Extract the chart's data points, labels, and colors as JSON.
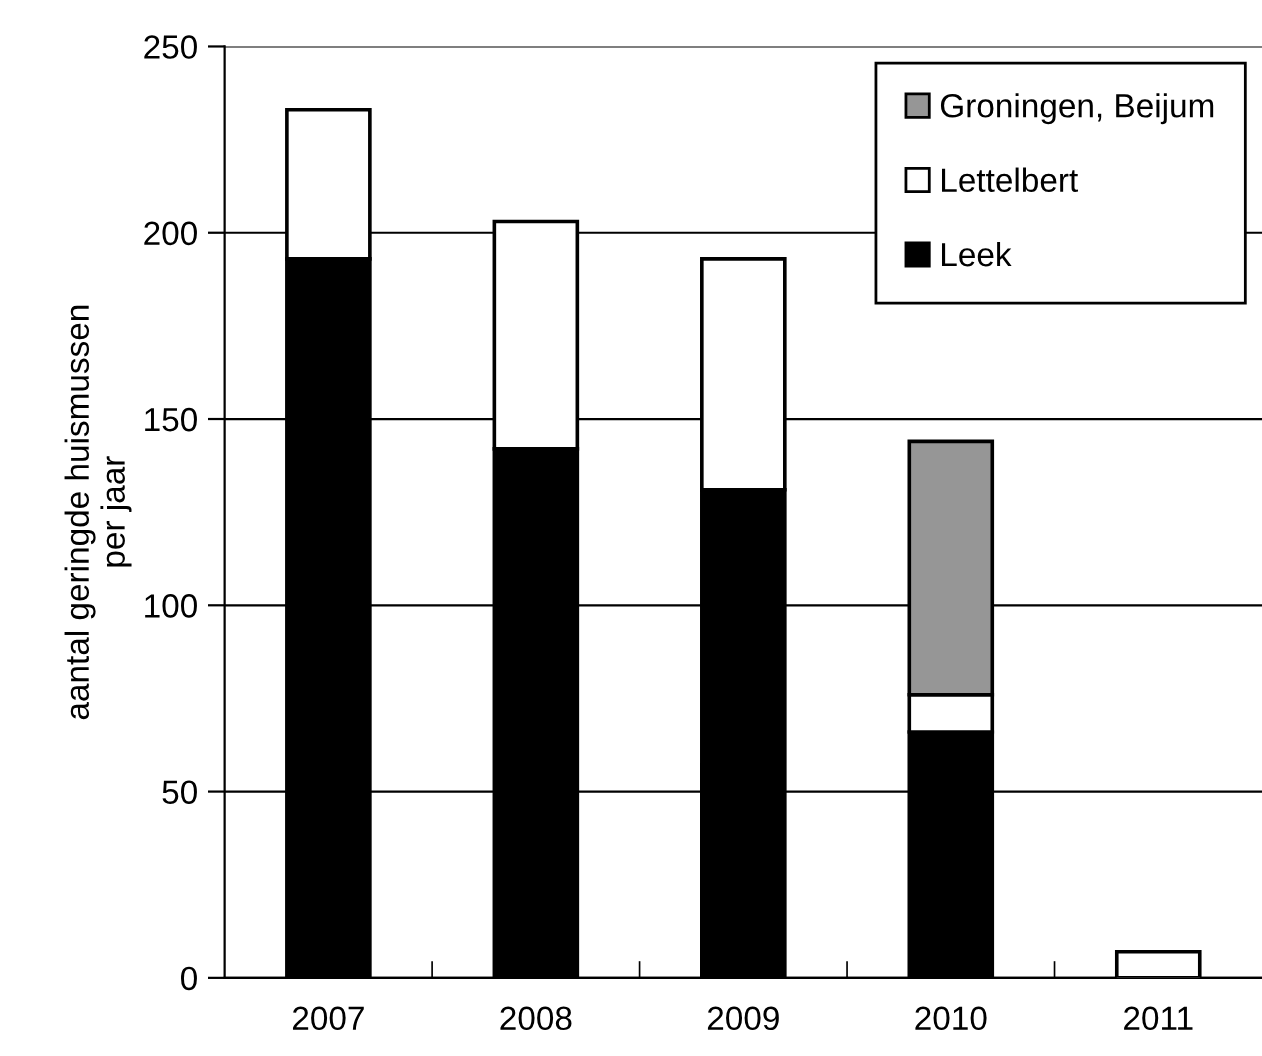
{
  "chart_data": {
    "type": "bar",
    "stacked": true,
    "ylabel": "aantal geringde huismussen\nper jaar",
    "categories": [
      "2007",
      "2008",
      "2009",
      "2010",
      "2011"
    ],
    "series": [
      {
        "name": "Leek",
        "color": "#000000",
        "values": [
          193,
          142,
          131,
          66,
          0
        ]
      },
      {
        "name": "Lettelbert",
        "color": "#ffffff",
        "values": [
          40,
          61,
          62,
          10,
          7
        ]
      },
      {
        "name": "Groningen, Beijum",
        "color": "#969696",
        "values": [
          0,
          0,
          0,
          68,
          0
        ]
      }
    ],
    "ylim": [
      0,
      250
    ],
    "yticks": [
      0,
      50,
      100,
      150,
      200,
      250
    ],
    "grid": "y",
    "legend": "top right"
  }
}
